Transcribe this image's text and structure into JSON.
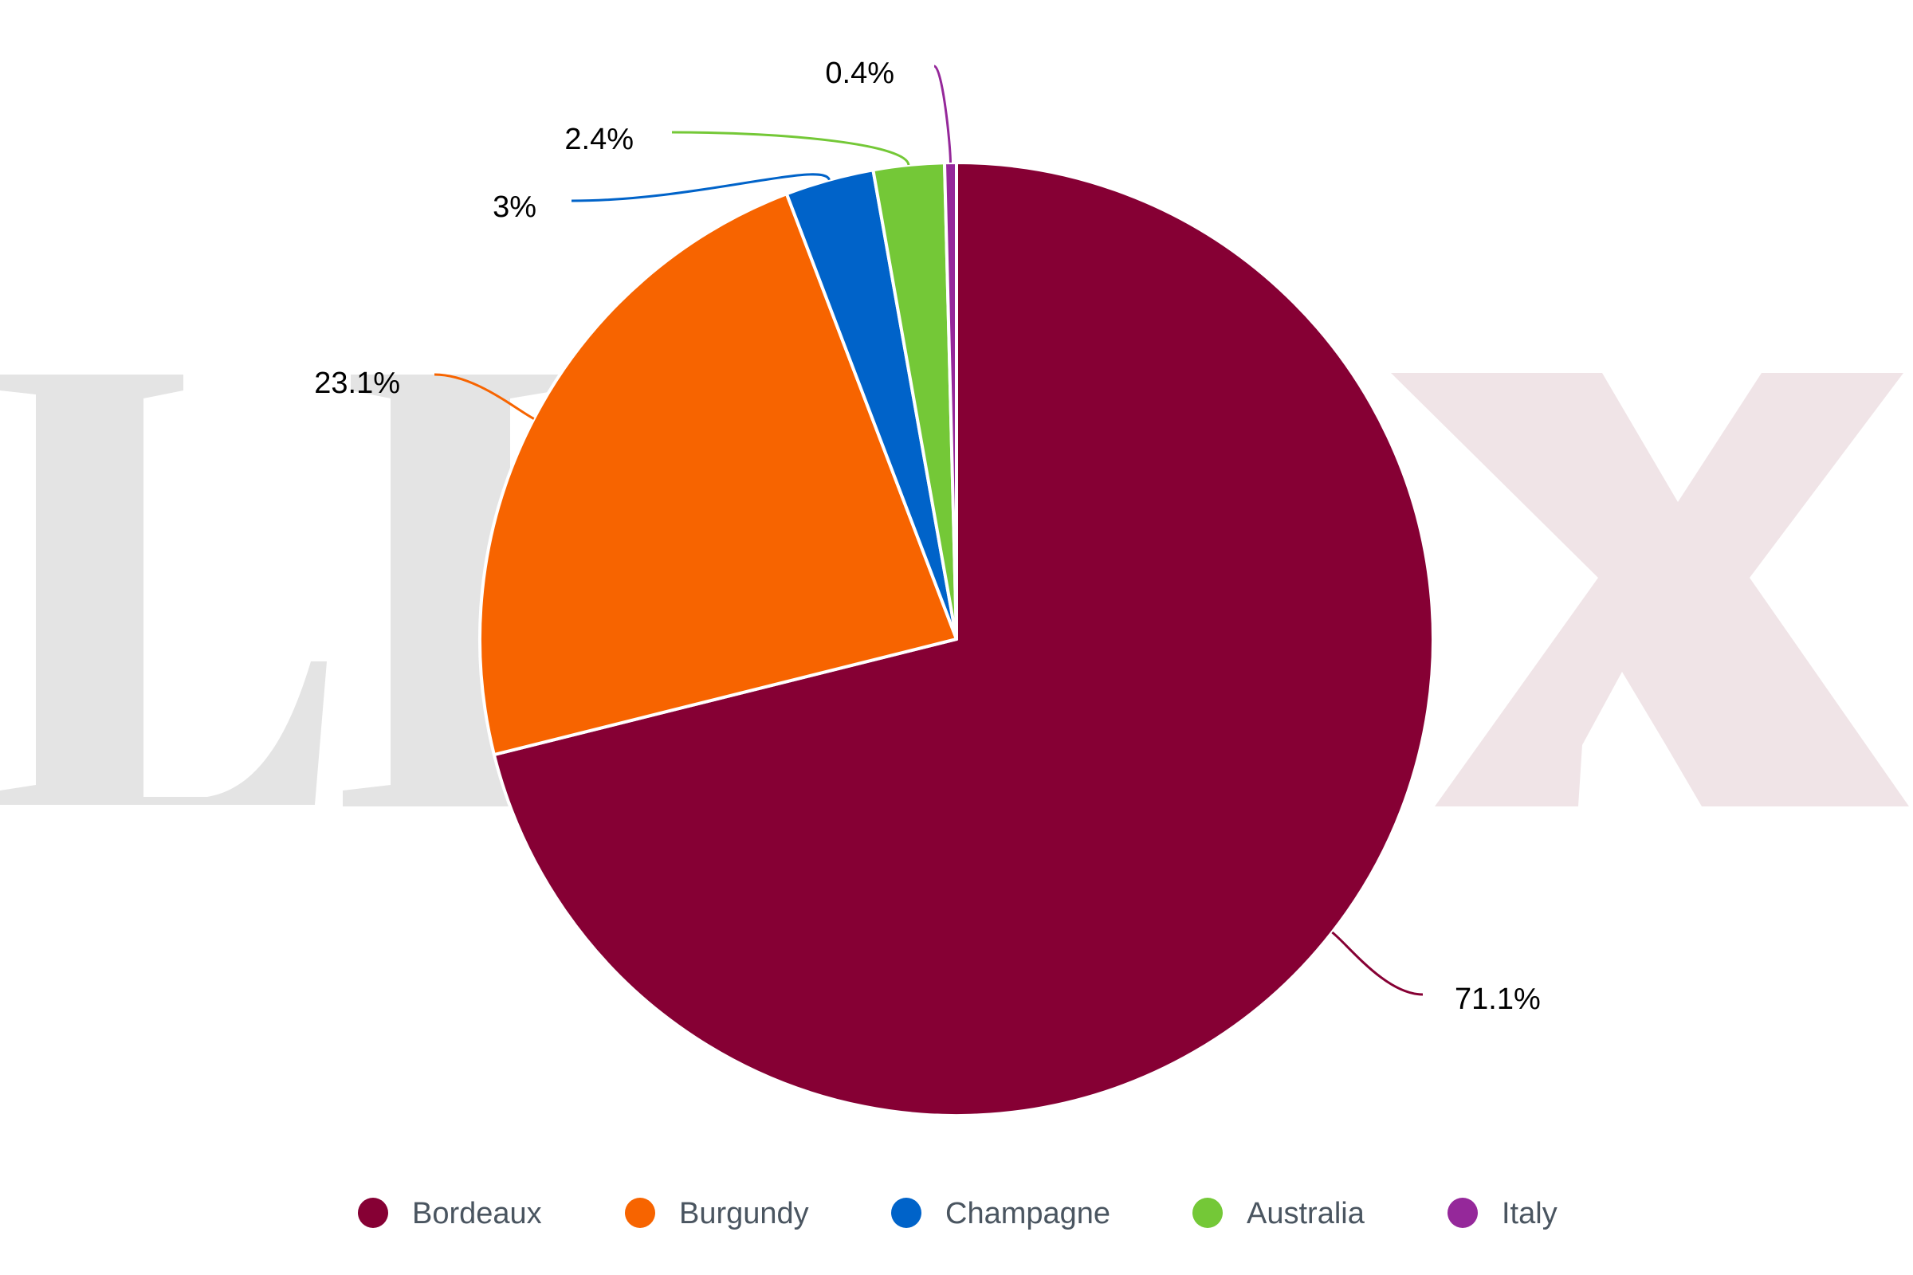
{
  "watermark": {
    "letters": [
      "L",
      "I",
      "X"
    ],
    "colors": [
      "#e4e4e4",
      "#e4e4e4",
      "#f0e4e7"
    ]
  },
  "chart_data": {
    "type": "pie",
    "start_angle_deg": 0,
    "direction": "clockwise",
    "legend_position": "bottom",
    "series": [
      {
        "name": "Bordeaux",
        "value": 71.1,
        "label": "71.1%",
        "color": "#860034"
      },
      {
        "name": "Burgundy",
        "value": 23.1,
        "label": "23.1%",
        "color": "#f76400"
      },
      {
        "name": "Champagne",
        "value": 3,
        "label": "3%",
        "color": "#0063c9"
      },
      {
        "name": "Australia",
        "value": 2.4,
        "label": "2.4%",
        "color": "#74c837"
      },
      {
        "name": "Italy",
        "value": 0.4,
        "label": "0.4%",
        "color": "#95289a"
      }
    ]
  }
}
